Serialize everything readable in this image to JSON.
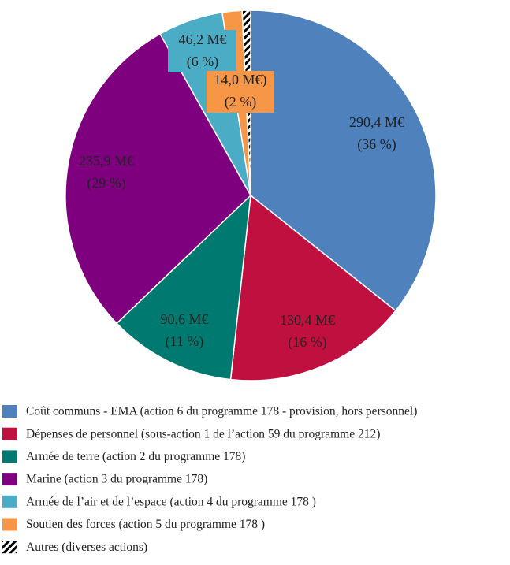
{
  "chart_data": {
    "type": "pie",
    "categories": [
      "Coût communs - EMA (action 6 du programme 178 - provision, hors personnel)",
      "Dépenses de personnel (sous-action 1 de l’action 59 du programme 212)",
      "Armée de terre (action 2 du programme 178)",
      "Marine (action 3 du programme 178)",
      "Armée de l’air et de l’espace (action 4 du programme 178 )",
      "Soutien des forces (action 5 du programme 178 )",
      "Autres (diverses actions)"
    ],
    "values": [
      290.4,
      130.4,
      90.6,
      235.9,
      46.2,
      14.0,
      6.0
    ],
    "value_labels": [
      "290,4 M€",
      "130,4 M€",
      "90,6 M€",
      "235,9 M€",
      "46,2 M€",
      "14,0 M€)",
      null
    ],
    "percent_labels": [
      "(36 %)",
      "(16 %)",
      "(11 %)",
      "(29 %)",
      "(6 %)",
      "(2 %)",
      null
    ],
    "colors": [
      "#4f81bd",
      "#c0103f",
      "#007a70",
      "#7f007f",
      "#4bacc6",
      "#f79646",
      "#000000"
    ],
    "hatched": [
      false,
      false,
      false,
      false,
      false,
      false,
      true
    ]
  }
}
